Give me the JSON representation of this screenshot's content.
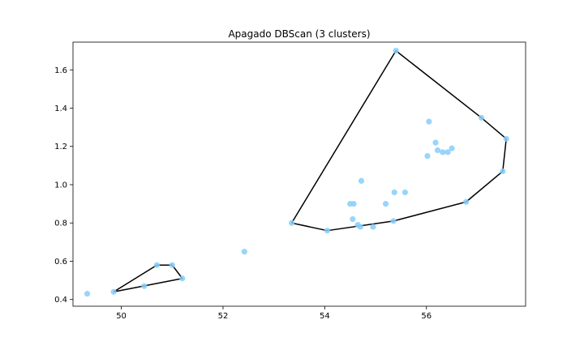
{
  "chart_data": {
    "type": "scatter",
    "title": "Apagado DBScan (3 clusters)",
    "xlabel": "",
    "ylabel": "",
    "xlim": [
      49.05,
      57.95
    ],
    "ylim": [
      0.365,
      1.745
    ],
    "xticks": [
      50,
      52,
      54,
      56
    ],
    "yticks": [
      0.4,
      0.6,
      0.8,
      1.0,
      1.2,
      1.4,
      1.6
    ],
    "xtick_labels": [
      "50",
      "52",
      "54",
      "56"
    ],
    "ytick_labels": [
      "0.4",
      "0.6",
      "0.8",
      "1.0",
      "1.2",
      "1.4",
      "1.6"
    ],
    "grid": false,
    "legend": "none",
    "point_color": "#87cefa",
    "hull_color": "#000000",
    "points": [
      {
        "x": 49.33,
        "y": 0.43
      },
      {
        "x": 49.85,
        "y": 0.44
      },
      {
        "x": 50.45,
        "y": 0.47
      },
      {
        "x": 50.7,
        "y": 0.58
      },
      {
        "x": 51.0,
        "y": 0.58
      },
      {
        "x": 51.2,
        "y": 0.51
      },
      {
        "x": 52.42,
        "y": 0.65
      },
      {
        "x": 53.35,
        "y": 0.8
      },
      {
        "x": 54.05,
        "y": 0.76
      },
      {
        "x": 54.5,
        "y": 0.9
      },
      {
        "x": 54.57,
        "y": 0.9
      },
      {
        "x": 54.55,
        "y": 0.82
      },
      {
        "x": 54.65,
        "y": 0.79
      },
      {
        "x": 54.7,
        "y": 0.78
      },
      {
        "x": 54.72,
        "y": 1.02
      },
      {
        "x": 54.95,
        "y": 0.78
      },
      {
        "x": 55.2,
        "y": 0.9
      },
      {
        "x": 55.35,
        "y": 0.81
      },
      {
        "x": 55.37,
        "y": 0.96
      },
      {
        "x": 55.4,
        "y": 1.7
      },
      {
        "x": 55.58,
        "y": 0.96
      },
      {
        "x": 56.02,
        "y": 1.15
      },
      {
        "x": 56.05,
        "y": 1.33
      },
      {
        "x": 56.18,
        "y": 1.22
      },
      {
        "x": 56.22,
        "y": 1.18
      },
      {
        "x": 56.32,
        "y": 1.17
      },
      {
        "x": 56.42,
        "y": 1.17
      },
      {
        "x": 56.5,
        "y": 1.19
      },
      {
        "x": 56.78,
        "y": 0.91
      },
      {
        "x": 57.08,
        "y": 1.35
      },
      {
        "x": 57.5,
        "y": 1.07
      },
      {
        "x": 57.57,
        "y": 1.24
      }
    ],
    "hulls": [
      {
        "vertices": [
          {
            "x": 49.85,
            "y": 0.44
          },
          {
            "x": 50.7,
            "y": 0.58
          },
          {
            "x": 51.0,
            "y": 0.58
          },
          {
            "x": 51.2,
            "y": 0.51
          },
          {
            "x": 49.85,
            "y": 0.44
          }
        ]
      },
      {
        "vertices": [
          {
            "x": 53.35,
            "y": 0.8
          },
          {
            "x": 55.4,
            "y": 1.7
          },
          {
            "x": 57.08,
            "y": 1.35
          },
          {
            "x": 57.57,
            "y": 1.24
          },
          {
            "x": 57.5,
            "y": 1.07
          },
          {
            "x": 56.78,
            "y": 0.91
          },
          {
            "x": 55.35,
            "y": 0.81
          },
          {
            "x": 54.05,
            "y": 0.76
          },
          {
            "x": 53.35,
            "y": 0.8
          }
        ]
      }
    ]
  }
}
